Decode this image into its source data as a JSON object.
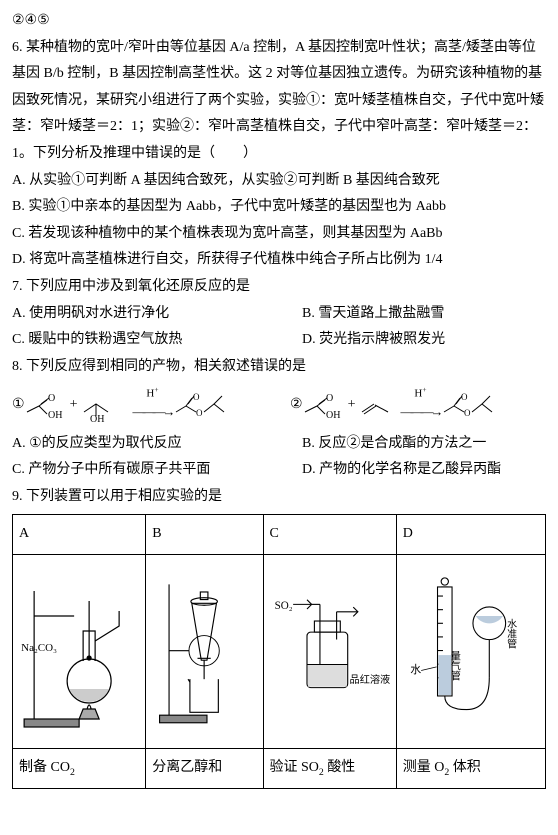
{
  "pre": "②④⑤",
  "q6": {
    "num": "6.",
    "body": "某种植物的宽叶/窄叶由等位基因 A/a 控制，A 基因控制宽叶性状；高茎/矮茎由等位基因 B/b 控制，B 基因控制高茎性状。这 2 对等位基因独立遗传。为研究该种植物的基因致死情况，某研究小组进行了两个实验，实验①：宽叶矮茎植株自交，子代中宽叶矮茎：窄叶矮茎＝2：1；实验②：窄叶高茎植株自交，子代中窄叶高茎：窄叶矮茎＝2：1。下列分析及推理中错误的是（　　）",
    "A": "A. 从实验①可判断 A 基因纯合致死，从实验②可判断 B 基因纯合致死",
    "B": "B. 实验①中亲本的基因型为 Aabb，子代中宽叶矮茎的基因型也为 Aabb",
    "C": "C. 若发现该种植物中的某个植株表现为宽叶高茎，则其基因型为 AaBb",
    "D": "D. 将宽叶高茎植株进行自交，所获得子代植株中纯合子所占比例为 1/4"
  },
  "q7": {
    "stem": "7. 下列应用中涉及到氧化还原反应的是",
    "A": "A. 使用明矾对水进行净化",
    "B": "B. 雪天道路上撒盐融雪",
    "C": "C. 暖贴中的铁粉遇空气放热",
    "D": "D. 荧光指示牌被照发光"
  },
  "q8": {
    "stem": "8. 下列反应得到相同的产物，相关叙述错误的是",
    "eq1_num": "①",
    "eq2_num": "②",
    "plus": "+",
    "cat": "H⁺",
    "A": "A. ①的反应类型为取代反应",
    "B": "B. 反应②是合成酯的方法之一",
    "C": "C. 产物分子中所有碳原子共平面",
    "D": "D. 产物的化学名称是乙酸异丙酯"
  },
  "q9": {
    "stem": "9. 下列装置可以用于相应实验的是",
    "headers": [
      "A",
      "B",
      "C",
      "D"
    ],
    "labels": {
      "na2co3": "Na₂CO₃",
      "so2": "SO₂",
      "pinhong": "品红溶液",
      "water": "水",
      "gasburet": "量气管",
      "leveltube": "水准管"
    },
    "captions": {
      "A": "制备 CO₂",
      "B": "分离乙醇和",
      "C": "验证 SO₂ 酸性",
      "D": "测量 O₂ 体积"
    }
  },
  "style": {
    "stroke": "#000000",
    "stroke_width": 1,
    "font_cn": 14,
    "font_small": 11
  }
}
